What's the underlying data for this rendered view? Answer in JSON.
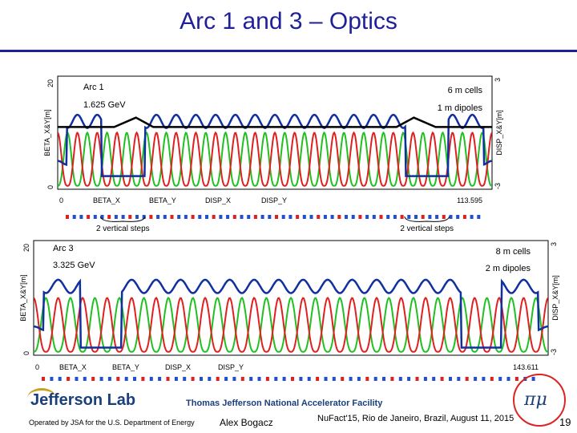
{
  "slide": {
    "title": "Arc 1 and 3  –  Optics",
    "page_number": "19"
  },
  "footer": {
    "lab_name": "Jefferson Lab",
    "facility": "Thomas Jefferson National Accelerator Facility",
    "operated": "Operated by JSA for the U.S. Department of Energy",
    "author": "Alex Bogacz",
    "event": "NuFact'15, Rio de Janeiro, Brazil, August 11, 2015",
    "logo_text": "Muon Accelerator Program"
  },
  "chart_data": [
    {
      "type": "line",
      "name": "arc1",
      "annotations": [
        "Arc 1",
        "1.625 GeV",
        "6 m cells",
        "1 m dipoles"
      ],
      "ylabel_left": "BETA_X&Y[m]",
      "ylabel_right": "DISP_X&Y[m]",
      "left_ticks": [
        "20",
        "0"
      ],
      "right_ticks": [
        "3",
        "-3"
      ],
      "x_start": "0",
      "x_end": "113.595",
      "xlim": [
        0,
        113.595
      ],
      "ylim": [
        0,
        20
      ],
      "ylim_right": [
        -3,
        3
      ],
      "legend": [
        "BETA_X",
        "BETA_Y",
        "DISP_X",
        "DISP_Y"
      ],
      "colors": {
        "BETA_X": "#e02020",
        "BETA_Y": "#20c020",
        "DISP_X": "#1030a0",
        "DISP_Y": "#000000"
      },
      "step_label": "2 vertical steps",
      "cells": 22,
      "beta_max": 10,
      "disp_max": 2.2
    },
    {
      "type": "line",
      "name": "arc3",
      "annotations": [
        "Arc 3",
        "3.325 GeV",
        "8 m cells",
        "2 m dipoles"
      ],
      "ylabel_left": "BETA_X&Y[m]",
      "ylabel_right": "DISP_X&Y[m]",
      "left_ticks": [
        "20",
        "0"
      ],
      "right_ticks": [
        "3",
        "-3"
      ],
      "x_start": "0",
      "x_end": "143.611",
      "xlim": [
        0,
        143.611
      ],
      "ylim": [
        0,
        20
      ],
      "ylim_right": [
        -3,
        3
      ],
      "legend": [
        "BETA_X",
        "BETA_Y",
        "DISP_X",
        "DISP_Y"
      ],
      "colors": {
        "BETA_X": "#e02020",
        "BETA_Y": "#20c020",
        "DISP_X": "#1030a0",
        "DISP_Y": "#000000"
      },
      "cells": 21,
      "beta_max": 10,
      "disp_max": 2.2
    }
  ]
}
